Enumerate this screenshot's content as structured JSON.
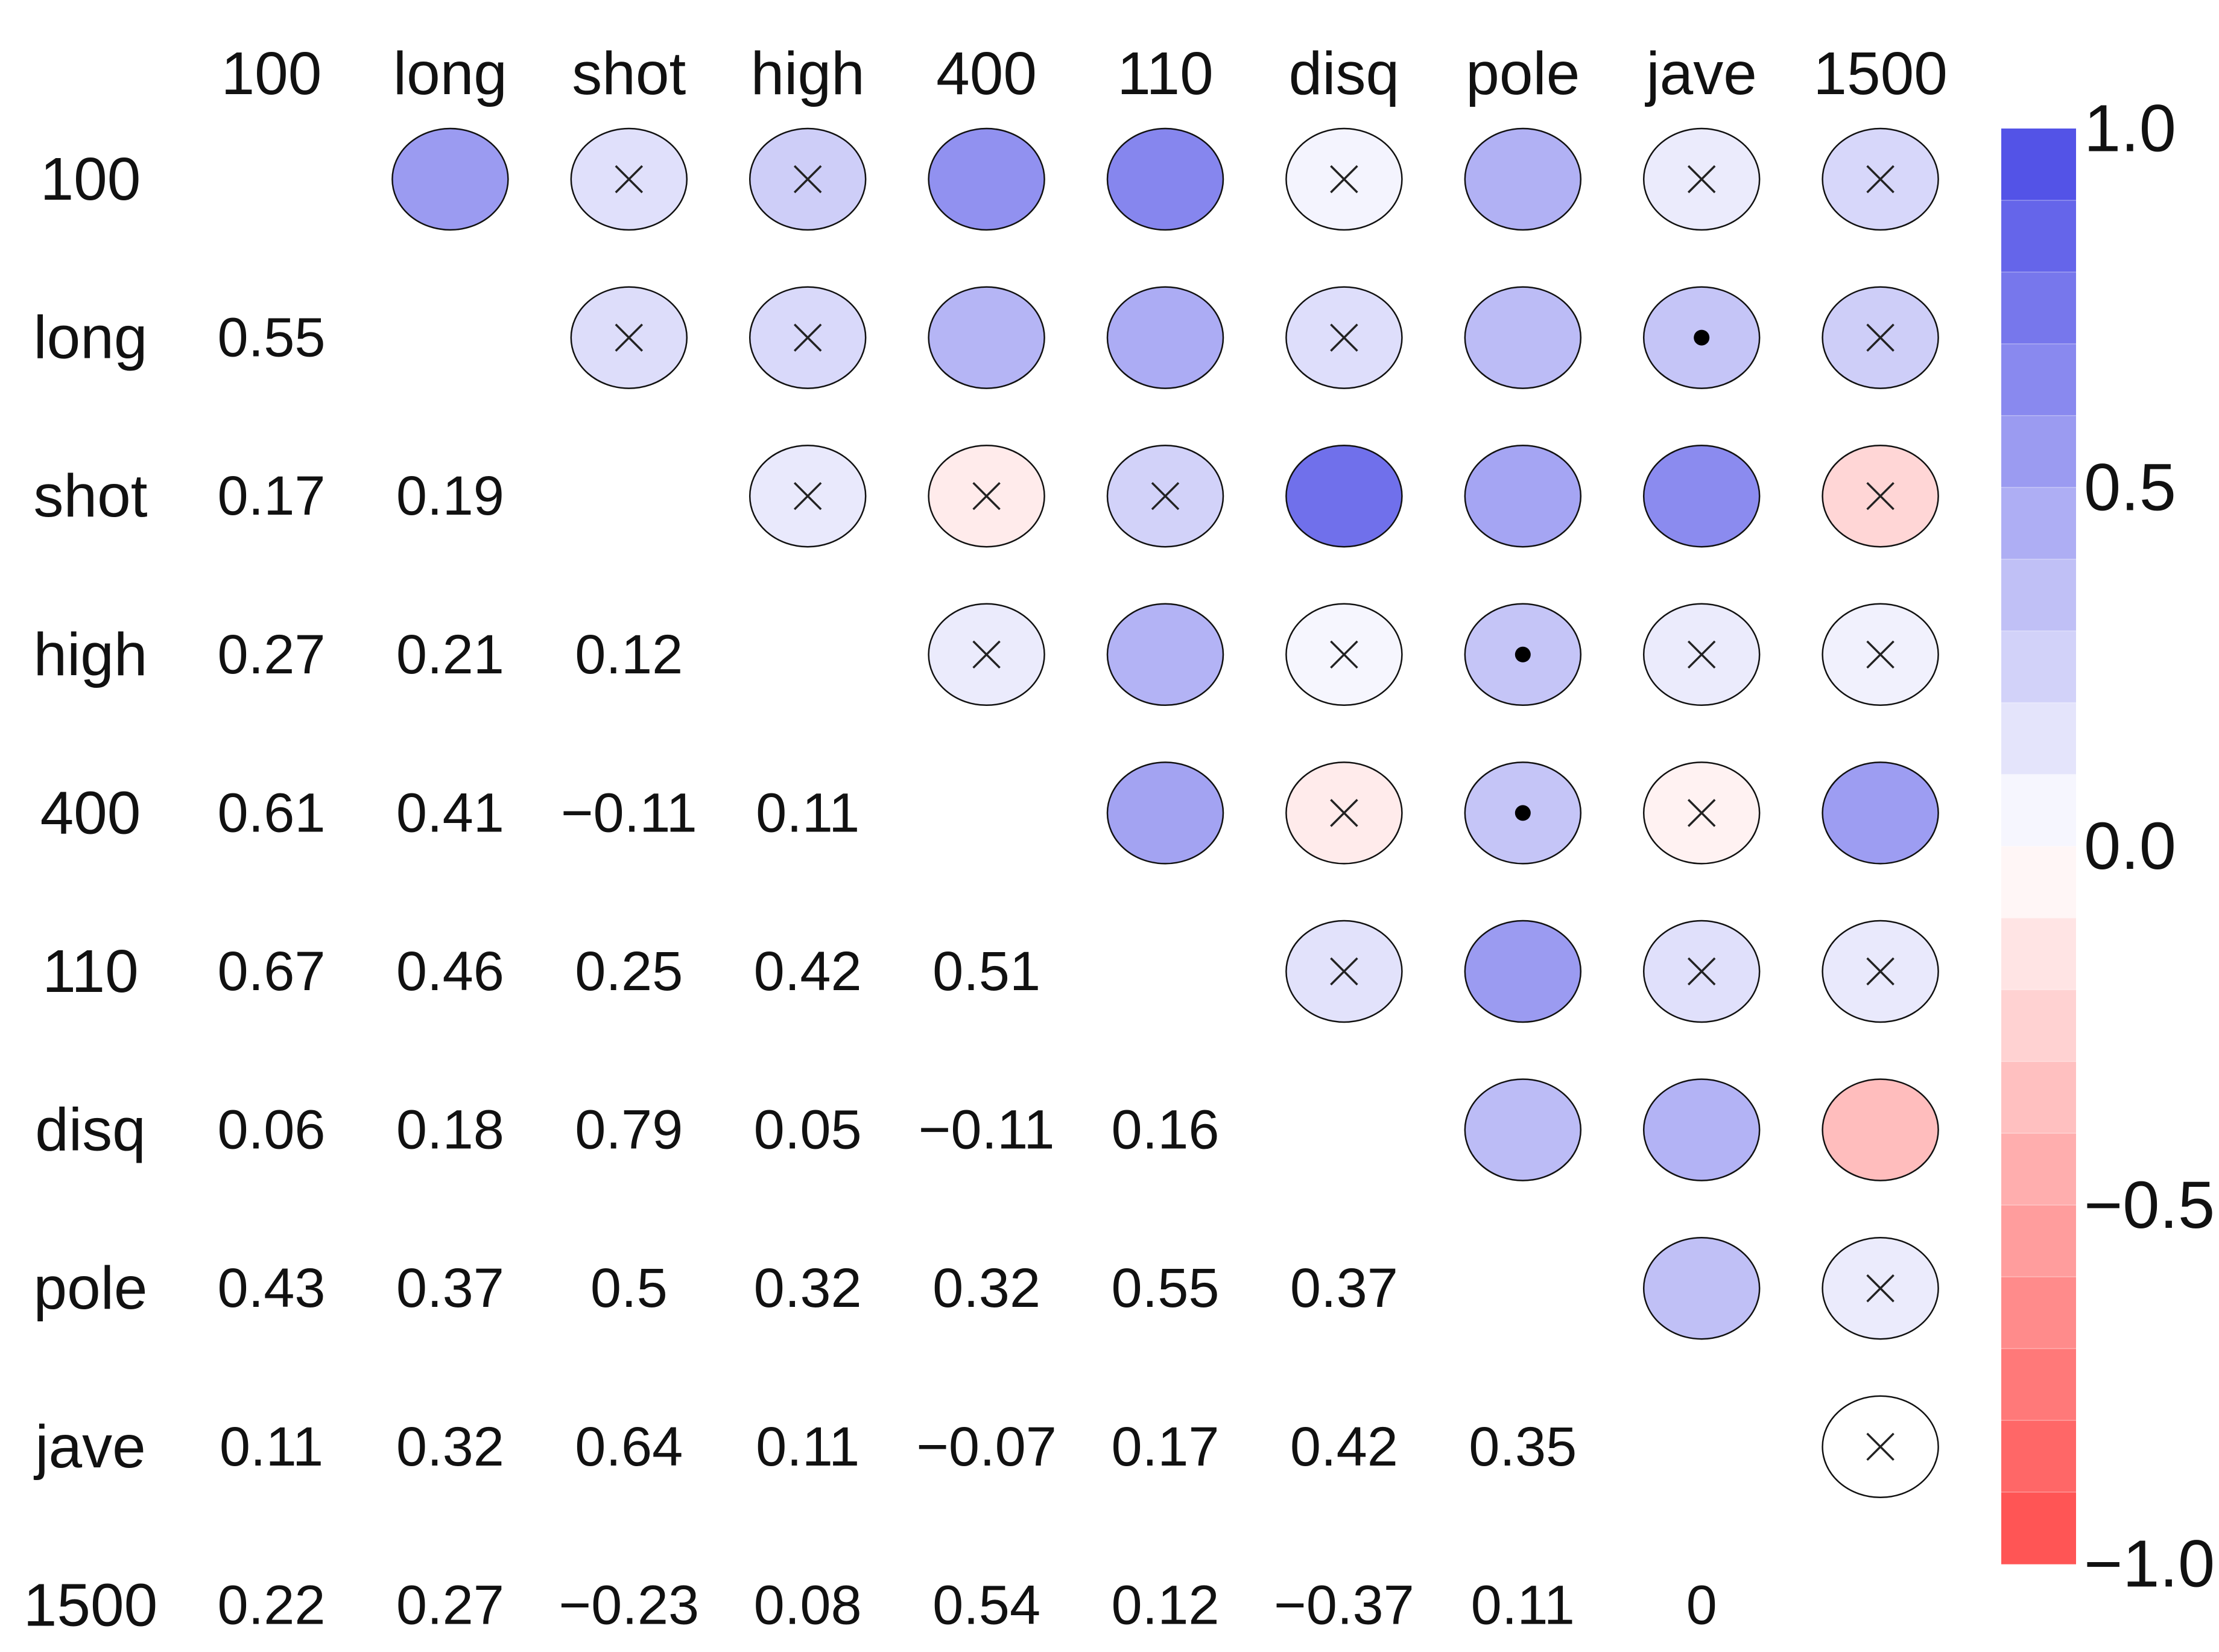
{
  "chart_data": {
    "type": "heatmap",
    "title": "",
    "variables": [
      "100",
      "long",
      "shot",
      "high",
      "400",
      "110",
      "disq",
      "pole",
      "jave",
      "1500"
    ],
    "lower_triangle_labels": [
      [],
      [
        "0.55"
      ],
      [
        "0.17",
        "0.19"
      ],
      [
        "0.27",
        "0.21",
        "0.12"
      ],
      [
        "0.61",
        "0.41",
        "−0.11",
        "0.11"
      ],
      [
        "0.67",
        "0.46",
        "0.25",
        "0.42",
        "0.51"
      ],
      [
        "0.06",
        "0.18",
        "0.79",
        "0.05",
        "−0.11",
        "0.16"
      ],
      [
        "0.43",
        "0.37",
        "0.5",
        "0.32",
        "0.32",
        "0.55",
        "0.37"
      ],
      [
        "0.11",
        "0.32",
        "0.64",
        "0.11",
        "−0.07",
        "0.17",
        "0.42",
        "0.35"
      ],
      [
        "0.22",
        "0.27",
        "−0.23",
        "0.08",
        "0.54",
        "0.12",
        "−0.37",
        "0.11",
        "0"
      ]
    ],
    "upper_triangle_values": [
      [
        null,
        0.55,
        0.17,
        0.27,
        0.61,
        0.67,
        0.06,
        0.43,
        0.11,
        0.22
      ],
      [
        null,
        null,
        0.19,
        0.21,
        0.41,
        0.46,
        0.18,
        0.37,
        0.32,
        0.27
      ],
      [
        null,
        null,
        null,
        0.12,
        -0.11,
        0.25,
        0.79,
        0.5,
        0.64,
        -0.23
      ],
      [
        null,
        null,
        null,
        null,
        0.11,
        0.42,
        0.05,
        0.32,
        0.11,
        0.08
      ],
      [
        null,
        null,
        null,
        null,
        null,
        0.51,
        -0.11,
        0.32,
        -0.07,
        0.54
      ],
      [
        null,
        null,
        null,
        null,
        null,
        null,
        0.16,
        0.55,
        0.17,
        0.12
      ],
      [
        null,
        null,
        null,
        null,
        null,
        null,
        null,
        0.37,
        0.42,
        -0.37
      ],
      [
        null,
        null,
        null,
        null,
        null,
        null,
        null,
        null,
        0.35,
        0.11
      ],
      [
        null,
        null,
        null,
        null,
        null,
        null,
        null,
        null,
        null,
        0
      ],
      [
        null,
        null,
        null,
        null,
        null,
        null,
        null,
        null,
        null,
        null
      ]
    ],
    "markers": [
      [
        null,
        null,
        "x",
        "x",
        null,
        null,
        "x",
        null,
        "x",
        "x"
      ],
      [
        null,
        null,
        "x",
        "x",
        null,
        null,
        "x",
        null,
        "dot",
        "x"
      ],
      [
        null,
        null,
        null,
        "x",
        "x",
        "x",
        null,
        null,
        null,
        "x"
      ],
      [
        null,
        null,
        null,
        null,
        "x",
        null,
        "x",
        "dot",
        "x",
        "x"
      ],
      [
        null,
        null,
        null,
        null,
        null,
        null,
        "x",
        "dot",
        "x",
        null
      ],
      [
        null,
        null,
        null,
        null,
        null,
        null,
        "x",
        null,
        "x",
        "x"
      ],
      [
        null,
        null,
        null,
        null,
        null,
        null,
        null,
        null,
        null,
        null
      ],
      [
        null,
        null,
        null,
        null,
        null,
        null,
        null,
        null,
        null,
        "x"
      ],
      [
        null,
        null,
        null,
        null,
        null,
        null,
        null,
        null,
        null,
        "x"
      ],
      [
        null,
        null,
        null,
        null,
        null,
        null,
        null,
        null,
        null,
        null
      ]
    ],
    "colorbar": {
      "range": [
        -1.0,
        1.0
      ],
      "tick_values": [
        1.0,
        0.5,
        0.0,
        -0.5,
        -1.0
      ],
      "tick_labels": [
        "1.0",
        "0.5",
        "0.0",
        "−0.5",
        "−1.0"
      ],
      "steps": 20,
      "positive_color": "#4a4ae6",
      "negative_color": "#ff4c4c",
      "neutral_color": "#ffffff"
    },
    "legend_position": "right"
  }
}
